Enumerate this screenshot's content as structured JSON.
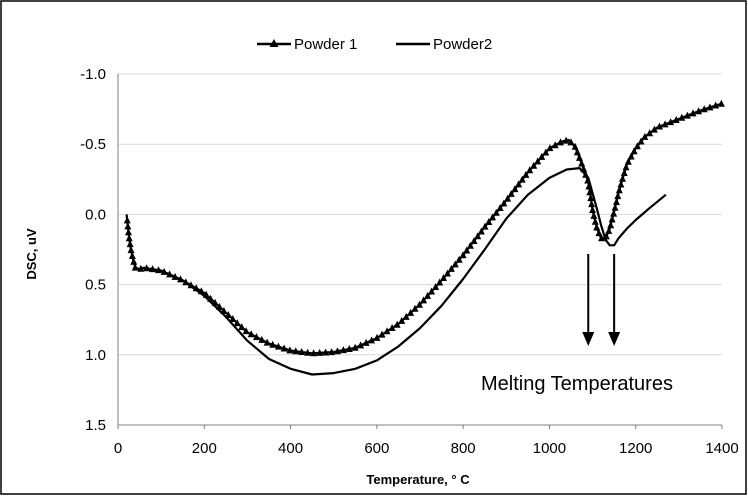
{
  "chart_data": {
    "type": "line",
    "title": "",
    "xlabel": "Temperature, ° C",
    "ylabel": "DSC, uV",
    "xlim": [
      0,
      1400
    ],
    "ylim": [
      -1.0,
      1.5
    ],
    "y_axis_reversed": true,
    "x_ticks": [
      "0",
      "200",
      "400",
      "600",
      "800",
      "1000",
      "1200",
      "1400"
    ],
    "y_ticks": [
      "-1.0",
      "-0.5",
      "0.0",
      "0.5",
      "1.0",
      "1.5"
    ],
    "grid": "horizontal",
    "legend_position": "top-center",
    "series": [
      {
        "name": "Powder 1",
        "marker": "triangle",
        "color": "#000000",
        "x": [
          20,
          25,
          30,
          35,
          40,
          50,
          60,
          80,
          100,
          150,
          200,
          250,
          300,
          350,
          400,
          450,
          500,
          550,
          600,
          650,
          700,
          750,
          800,
          850,
          900,
          950,
          1000,
          1030,
          1045,
          1060,
          1075,
          1090,
          1100,
          1110,
          1120,
          1130,
          1140,
          1150,
          1160,
          1170,
          1180,
          1200,
          1220,
          1250,
          1300,
          1350,
          1400
        ],
        "y": [
          0.0,
          0.15,
          0.25,
          0.32,
          0.38,
          0.39,
          0.38,
          0.39,
          0.4,
          0.47,
          0.56,
          0.7,
          0.84,
          0.92,
          0.97,
          0.99,
          0.98,
          0.95,
          0.88,
          0.78,
          0.64,
          0.47,
          0.29,
          0.09,
          -0.1,
          -0.3,
          -0.47,
          -0.52,
          -0.53,
          -0.48,
          -0.36,
          -0.23,
          -0.03,
          0.1,
          0.17,
          0.17,
          0.1,
          -0.02,
          -0.15,
          -0.26,
          -0.36,
          -0.47,
          -0.55,
          -0.62,
          -0.68,
          -0.74,
          -0.79
        ]
      },
      {
        "name": "Powder2",
        "marker": "none",
        "color": "#000000",
        "x": [
          60,
          100,
          150,
          200,
          250,
          300,
          350,
          400,
          450,
          500,
          550,
          600,
          650,
          700,
          750,
          800,
          850,
          900,
          950,
          1000,
          1040,
          1070,
          1090,
          1100,
          1110,
          1120,
          1130,
          1140,
          1150,
          1160,
          1180,
          1200,
          1230,
          1270
        ],
        "y": [
          0.39,
          0.4,
          0.47,
          0.58,
          0.73,
          0.9,
          1.03,
          1.1,
          1.14,
          1.13,
          1.1,
          1.04,
          0.94,
          0.81,
          0.65,
          0.46,
          0.25,
          0.03,
          -0.14,
          -0.26,
          -0.32,
          -0.33,
          -0.26,
          -0.15,
          -0.04,
          0.08,
          0.18,
          0.22,
          0.22,
          0.17,
          0.1,
          0.04,
          -0.04,
          -0.14
        ]
      }
    ],
    "annotations": [
      {
        "text": "Melting Temperatures",
        "arrows_at_x": [
          1090,
          1150
        ]
      }
    ]
  },
  "colors": {
    "line": "#000000",
    "grid": "#d9d9d9",
    "frame": "#000000",
    "axis": "#808080"
  }
}
